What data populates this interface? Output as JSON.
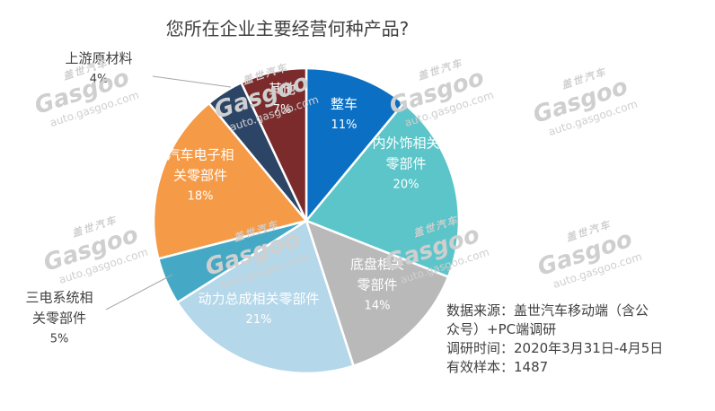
{
  "chart_data": {
    "type": "pie",
    "title": "您所在企业主要经营何种产品?",
    "slices": [
      {
        "label": "整车",
        "value": 11,
        "color": "#0b6fc4",
        "label_lines": [
          "整车"
        ],
        "pct_text": "11%"
      },
      {
        "label": "内外饰相关零部件",
        "value": 20,
        "color": "#5bc5c9",
        "label_lines": [
          "内外饰相关",
          "零部件"
        ],
        "pct_text": "20%"
      },
      {
        "label": "底盘相关零部件",
        "value": 14,
        "color": "#b9b9b9",
        "label_lines": [
          "底盘相关",
          "零部件"
        ],
        "pct_text": "14%"
      },
      {
        "label": "动力总成相关零部件",
        "value": 21,
        "color": "#b4d7ea",
        "label_lines": [
          "动力总成相关零部件"
        ],
        "pct_text": "21%"
      },
      {
        "label": "三电系统相关零部件",
        "value": 5,
        "color": "#45a9c6",
        "label_lines": [
          "三电系统相",
          "关零部件"
        ],
        "pct_text": "5%"
      },
      {
        "label": "汽车电子相关零部件",
        "value": 18,
        "color": "#f59a46",
        "label_lines": [
          "汽车电子相",
          "关零部件"
        ],
        "pct_text": "18%"
      },
      {
        "label": "上游原材料",
        "value": 4,
        "color": "#2c4566",
        "label_lines": [
          "上游原材料"
        ],
        "pct_text": "4%"
      },
      {
        "label": "其他",
        "value": 7,
        "color": "#7b2b2b",
        "label_lines": [
          "其他"
        ],
        "pct_text": "7%"
      }
    ]
  },
  "source": {
    "line1": "数据来源：盖世汽车移动端（含公",
    "line2": "众号）+PC端调研",
    "line3": "调研时间：2020年3月31日-4月5日",
    "line4": "有效样本：1487"
  },
  "watermark": {
    "cn": "盖世汽车",
    "logo": "Gasgoo",
    "url": "auto.gasgoo.com"
  }
}
